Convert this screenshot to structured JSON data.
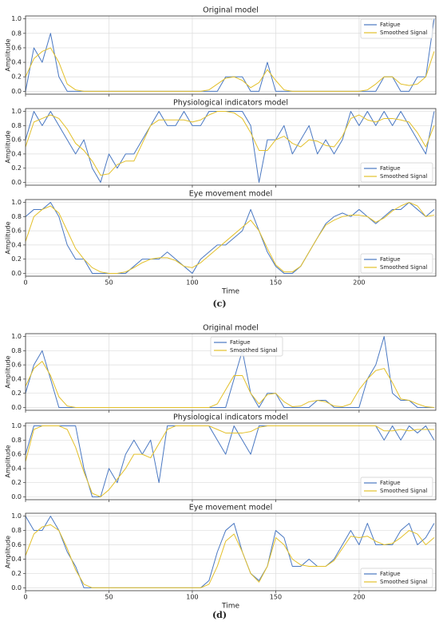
{
  "captions": [
    "(c)",
    "(d)"
  ],
  "chart_data": [
    {
      "type": "line",
      "title": "Original model",
      "ylabel": "Amplitude",
      "xlim": [
        0,
        246
      ],
      "ylim": [
        -0.04,
        1.04
      ],
      "xticks": [
        0,
        50,
        100,
        150,
        200
      ],
      "yticks": [
        {
          "value": 0,
          "label": "0.0"
        },
        0.2,
        0.4,
        0.6,
        0.8,
        {
          "value": 1,
          "label": "1.0"
        }
      ],
      "grid": true,
      "legend": "upper right",
      "x": [
        0,
        5,
        10,
        15,
        20,
        25,
        30,
        35,
        40,
        45,
        50,
        55,
        60,
        65,
        70,
        75,
        80,
        85,
        90,
        95,
        100,
        105,
        110,
        115,
        120,
        125,
        130,
        135,
        140,
        145,
        150,
        155,
        160,
        165,
        170,
        175,
        180,
        185,
        190,
        195,
        200,
        205,
        210,
        215,
        220,
        225,
        230,
        235,
        240,
        245
      ],
      "series": [
        {
          "name": "Fatigue",
          "color": "#4a78c2",
          "values": [
            0,
            0.6,
            0.4,
            0.8,
            0.2,
            0,
            0,
            0,
            0,
            0,
            0,
            0,
            0,
            0,
            0,
            0,
            0,
            0,
            0,
            0,
            0,
            0,
            0,
            0,
            0.2,
            0.2,
            0.2,
            0,
            0,
            0.4,
            0,
            0,
            0,
            0,
            0,
            0,
            0,
            0,
            0,
            0,
            0,
            0,
            0,
            0.2,
            0.2,
            0,
            0,
            0.2,
            0.2,
            1.0
          ]
        },
        {
          "name": "Smoothed Signal",
          "color": "#e3c02b",
          "values": [
            0.2,
            0.45,
            0.55,
            0.6,
            0.4,
            0.1,
            0.02,
            0,
            0,
            0,
            0,
            0,
            0,
            0,
            0,
            0,
            0,
            0,
            0,
            0,
            0,
            0,
            0.02,
            0.1,
            0.18,
            0.2,
            0.15,
            0.05,
            0.12,
            0.3,
            0.15,
            0.02,
            0,
            0,
            0,
            0,
            0,
            0,
            0,
            0,
            0,
            0.02,
            0.1,
            0.2,
            0.2,
            0.1,
            0.08,
            0.1,
            0.2,
            0.55
          ]
        }
      ]
    },
    {
      "type": "line",
      "title": "Physiological indicators model",
      "ylabel": "Amplitude",
      "xlim": [
        0,
        246
      ],
      "ylim": [
        -0.04,
        1.04
      ],
      "xticks": [
        0,
        50,
        100,
        150,
        200
      ],
      "yticks": [
        {
          "value": 0,
          "label": "0.0"
        },
        0.2,
        0.4,
        0.6,
        0.8,
        {
          "value": 1,
          "label": "1.0"
        }
      ],
      "grid": true,
      "legend": "lower right",
      "x": [
        0,
        5,
        10,
        15,
        20,
        25,
        30,
        35,
        40,
        45,
        50,
        55,
        60,
        65,
        70,
        75,
        80,
        85,
        90,
        95,
        100,
        105,
        110,
        115,
        120,
        125,
        130,
        135,
        140,
        145,
        150,
        155,
        160,
        165,
        170,
        175,
        180,
        185,
        190,
        195,
        200,
        205,
        210,
        215,
        220,
        225,
        230,
        235,
        240,
        245
      ],
      "series": [
        {
          "name": "Fatigue",
          "color": "#4a78c2",
          "values": [
            0.6,
            1,
            0.8,
            1,
            0.8,
            0.6,
            0.4,
            0.6,
            0.2,
            0,
            0.4,
            0.2,
            0.4,
            0.4,
            0.6,
            0.8,
            1,
            0.8,
            0.8,
            1,
            0.8,
            0.8,
            1,
            1,
            1,
            1,
            1,
            0.8,
            0,
            0.6,
            0.6,
            0.8,
            0.4,
            0.6,
            0.8,
            0.4,
            0.6,
            0.4,
            0.6,
            1,
            0.8,
            1,
            0.8,
            1,
            0.8,
            1,
            0.8,
            0.6,
            0.4,
            1
          ]
        },
        {
          "name": "Smoothed Signal",
          "color": "#e3c02b",
          "values": [
            0.5,
            0.85,
            0.9,
            0.95,
            0.9,
            0.75,
            0.55,
            0.45,
            0.3,
            0.1,
            0.12,
            0.25,
            0.3,
            0.3,
            0.55,
            0.8,
            0.88,
            0.88,
            0.88,
            0.88,
            0.85,
            0.88,
            0.95,
            1,
            1,
            0.98,
            0.9,
            0.7,
            0.45,
            0.45,
            0.6,
            0.65,
            0.55,
            0.5,
            0.6,
            0.58,
            0.52,
            0.5,
            0.65,
            0.9,
            0.95,
            0.88,
            0.85,
            0.9,
            0.9,
            0.88,
            0.85,
            0.7,
            0.5,
            0.8
          ]
        }
      ]
    },
    {
      "type": "line",
      "title": "Eye movement model",
      "ylabel": "Amplitude",
      "xlabel": "Time",
      "xlim": [
        0,
        246
      ],
      "ylim": [
        -0.04,
        1.04
      ],
      "xticks": [
        0,
        50,
        100,
        150,
        200
      ],
      "yticks": [
        {
          "value": 0,
          "label": "0.0"
        },
        0.2,
        0.4,
        0.6,
        0.8,
        {
          "value": 1,
          "label": "1.0"
        }
      ],
      "grid": true,
      "legend": "lower right",
      "x": [
        0,
        5,
        10,
        15,
        20,
        25,
        30,
        35,
        40,
        45,
        50,
        55,
        60,
        65,
        70,
        75,
        80,
        85,
        90,
        95,
        100,
        105,
        110,
        115,
        120,
        125,
        130,
        135,
        140,
        145,
        150,
        155,
        160,
        165,
        170,
        175,
        180,
        185,
        190,
        195,
        200,
        205,
        210,
        215,
        220,
        225,
        230,
        235,
        240,
        245
      ],
      "series": [
        {
          "name": "Fatigue",
          "color": "#4a78c2",
          "values": [
            0.8,
            0.9,
            0.9,
            1.0,
            0.8,
            0.4,
            0.2,
            0.2,
            0,
            0,
            0,
            0,
            0,
            0.1,
            0.2,
            0.2,
            0.2,
            0.3,
            0.2,
            0.1,
            0,
            0.2,
            0.3,
            0.4,
            0.4,
            0.5,
            0.6,
            0.9,
            0.6,
            0.3,
            0.1,
            0,
            0,
            0.1,
            0.3,
            0.5,
            0.7,
            0.8,
            0.85,
            0.8,
            0.9,
            0.8,
            0.7,
            0.8,
            0.9,
            0.9,
            1.0,
            0.9,
            0.8,
            0.9
          ]
        },
        {
          "name": "Smoothed Signal",
          "color": "#e3c02b",
          "values": [
            0.45,
            0.8,
            0.9,
            0.95,
            0.85,
            0.6,
            0.35,
            0.2,
            0.08,
            0.02,
            0,
            0,
            0.02,
            0.08,
            0.15,
            0.2,
            0.22,
            0.22,
            0.18,
            0.1,
            0.08,
            0.15,
            0.25,
            0.35,
            0.45,
            0.55,
            0.65,
            0.75,
            0.6,
            0.35,
            0.12,
            0.02,
            0.02,
            0.1,
            0.3,
            0.5,
            0.68,
            0.75,
            0.8,
            0.82,
            0.82,
            0.8,
            0.72,
            0.78,
            0.88,
            0.95,
            1.0,
            0.95,
            0.8,
            0.82
          ]
        }
      ]
    },
    {
      "type": "line",
      "title": "Original model",
      "ylabel": "Amplitude",
      "xlim": [
        0,
        246
      ],
      "ylim": [
        -0.04,
        1.04
      ],
      "xticks": [
        0,
        50,
        100,
        150,
        200
      ],
      "yticks": [
        {
          "value": 0,
          "label": "0.0"
        },
        0.2,
        0.4,
        0.6,
        0.8,
        {
          "value": 1,
          "label": "1.0"
        }
      ],
      "grid": true,
      "legend": "upper center",
      "x": [
        0,
        5,
        10,
        15,
        20,
        25,
        30,
        35,
        40,
        45,
        50,
        55,
        60,
        65,
        70,
        75,
        80,
        85,
        90,
        95,
        100,
        105,
        110,
        115,
        120,
        125,
        130,
        135,
        140,
        145,
        150,
        155,
        160,
        165,
        170,
        175,
        180,
        185,
        190,
        195,
        200,
        205,
        210,
        215,
        220,
        225,
        230,
        235,
        240,
        245
      ],
      "series": [
        {
          "name": "Fatigue",
          "color": "#4a78c2",
          "values": [
            0.2,
            0.6,
            0.8,
            0.4,
            0,
            0,
            0,
            0,
            0,
            0,
            0,
            0,
            0,
            0,
            0,
            0,
            0,
            0,
            0,
            0,
            0,
            0,
            0,
            0,
            0,
            0.4,
            0.8,
            0.2,
            0,
            0.2,
            0.2,
            0,
            0,
            0,
            0,
            0.1,
            0.1,
            0,
            0,
            0,
            0,
            0.4,
            0.6,
            1.0,
            0.2,
            0.1,
            0.1,
            0,
            0,
            0
          ]
        },
        {
          "name": "Smoothed Signal",
          "color": "#e3c02b",
          "values": [
            0.3,
            0.55,
            0.65,
            0.45,
            0.15,
            0.02,
            0,
            0,
            0,
            0,
            0,
            0,
            0,
            0,
            0,
            0,
            0,
            0,
            0,
            0,
            0,
            0,
            0,
            0.05,
            0.25,
            0.45,
            0.45,
            0.2,
            0.05,
            0.18,
            0.2,
            0.08,
            0.01,
            0.02,
            0.08,
            0.1,
            0.08,
            0.02,
            0.01,
            0.05,
            0.25,
            0.4,
            0.52,
            0.55,
            0.35,
            0.12,
            0.1,
            0.05,
            0.01,
            0
          ]
        }
      ]
    },
    {
      "type": "line",
      "title": "Physiological indicators model",
      "ylabel": "Amplitude",
      "xlim": [
        0,
        246
      ],
      "ylim": [
        -0.04,
        1.04
      ],
      "xticks": [
        0,
        50,
        100,
        150,
        200
      ],
      "yticks": [
        {
          "value": 0,
          "label": "0.0"
        },
        0.2,
        0.4,
        0.6,
        0.8,
        {
          "value": 1,
          "label": "1.0"
        }
      ],
      "grid": true,
      "legend": "lower right",
      "x": [
        0,
        5,
        10,
        15,
        20,
        25,
        30,
        35,
        40,
        45,
        50,
        55,
        60,
        65,
        70,
        75,
        80,
        85,
        90,
        95,
        100,
        105,
        110,
        115,
        120,
        125,
        130,
        135,
        140,
        145,
        150,
        155,
        160,
        165,
        170,
        175,
        180,
        185,
        190,
        195,
        200,
        205,
        210,
        215,
        220,
        225,
        230,
        235,
        240,
        245
      ],
      "series": [
        {
          "name": "Fatigue",
          "color": "#4a78c2",
          "values": [
            0.6,
            1,
            1,
            1,
            1,
            1,
            1,
            0.4,
            0,
            0,
            0.4,
            0.2,
            0.6,
            0.8,
            0.6,
            0.8,
            0.2,
            1,
            1,
            1,
            1,
            1,
            1,
            0.8,
            0.6,
            1,
            0.8,
            0.6,
            1,
            1,
            1,
            1,
            1,
            1,
            1,
            1,
            1,
            1,
            1,
            1,
            1,
            1,
            1,
            0.8,
            1,
            0.8,
            1,
            0.9,
            1,
            0.8
          ]
        },
        {
          "name": "Smoothed Signal",
          "color": "#e3c02b",
          "values": [
            0.5,
            0.95,
            1,
            1,
            1,
            0.95,
            0.7,
            0.35,
            0.05,
            0,
            0.1,
            0.25,
            0.4,
            0.6,
            0.6,
            0.55,
            0.75,
            0.95,
            1,
            1,
            1,
            1,
            1,
            0.95,
            0.9,
            0.9,
            0.9,
            0.92,
            0.98,
            1,
            1,
            1,
            1,
            1,
            1,
            1,
            1,
            1,
            1,
            1,
            1,
            1,
            1,
            0.93,
            0.93,
            0.95,
            0.93,
            0.95,
            0.95,
            0.95
          ]
        }
      ]
    },
    {
      "type": "line",
      "title": "Eye movement model",
      "ylabel": "Amplitude",
      "xlabel": "Time",
      "xlim": [
        0,
        246
      ],
      "ylim": [
        -0.04,
        1.04
      ],
      "xticks": [
        0,
        50,
        100,
        150,
        200
      ],
      "yticks": [
        {
          "value": 0,
          "label": "0.0"
        },
        0.2,
        0.4,
        0.6,
        0.8,
        {
          "value": 1,
          "label": "1.0"
        }
      ],
      "grid": true,
      "legend": "lower right",
      "x": [
        0,
        5,
        10,
        15,
        20,
        25,
        30,
        35,
        40,
        45,
        50,
        55,
        60,
        65,
        70,
        75,
        80,
        85,
        90,
        95,
        100,
        105,
        110,
        115,
        120,
        125,
        130,
        135,
        140,
        145,
        150,
        155,
        160,
        165,
        170,
        175,
        180,
        185,
        190,
        195,
        200,
        205,
        210,
        215,
        220,
        225,
        230,
        235,
        240,
        245
      ],
      "series": [
        {
          "name": "Fatigue",
          "color": "#4a78c2",
          "values": [
            1.0,
            0.8,
            0.8,
            1.0,
            0.8,
            0.5,
            0.3,
            0,
            0,
            0,
            0,
            0,
            0,
            0,
            0,
            0,
            0,
            0,
            0,
            0,
            0,
            0,
            0.1,
            0.5,
            0.8,
            0.9,
            0.5,
            0.2,
            0.1,
            0.3,
            0.8,
            0.7,
            0.3,
            0.3,
            0.4,
            0.3,
            0.3,
            0.4,
            0.6,
            0.8,
            0.6,
            0.9,
            0.6,
            0.6,
            0.6,
            0.8,
            0.9,
            0.6,
            0.7,
            0.9
          ]
        },
        {
          "name": "Smoothed Signal",
          "color": "#e3c02b",
          "values": [
            0.45,
            0.75,
            0.85,
            0.88,
            0.8,
            0.55,
            0.25,
            0.05,
            0,
            0,
            0,
            0,
            0,
            0,
            0,
            0,
            0,
            0,
            0,
            0,
            0,
            0,
            0.05,
            0.3,
            0.65,
            0.75,
            0.5,
            0.2,
            0.08,
            0.3,
            0.7,
            0.6,
            0.4,
            0.32,
            0.3,
            0.3,
            0.3,
            0.38,
            0.55,
            0.72,
            0.7,
            0.72,
            0.65,
            0.6,
            0.62,
            0.7,
            0.8,
            0.75,
            0.6,
            0.7
          ]
        }
      ]
    }
  ]
}
